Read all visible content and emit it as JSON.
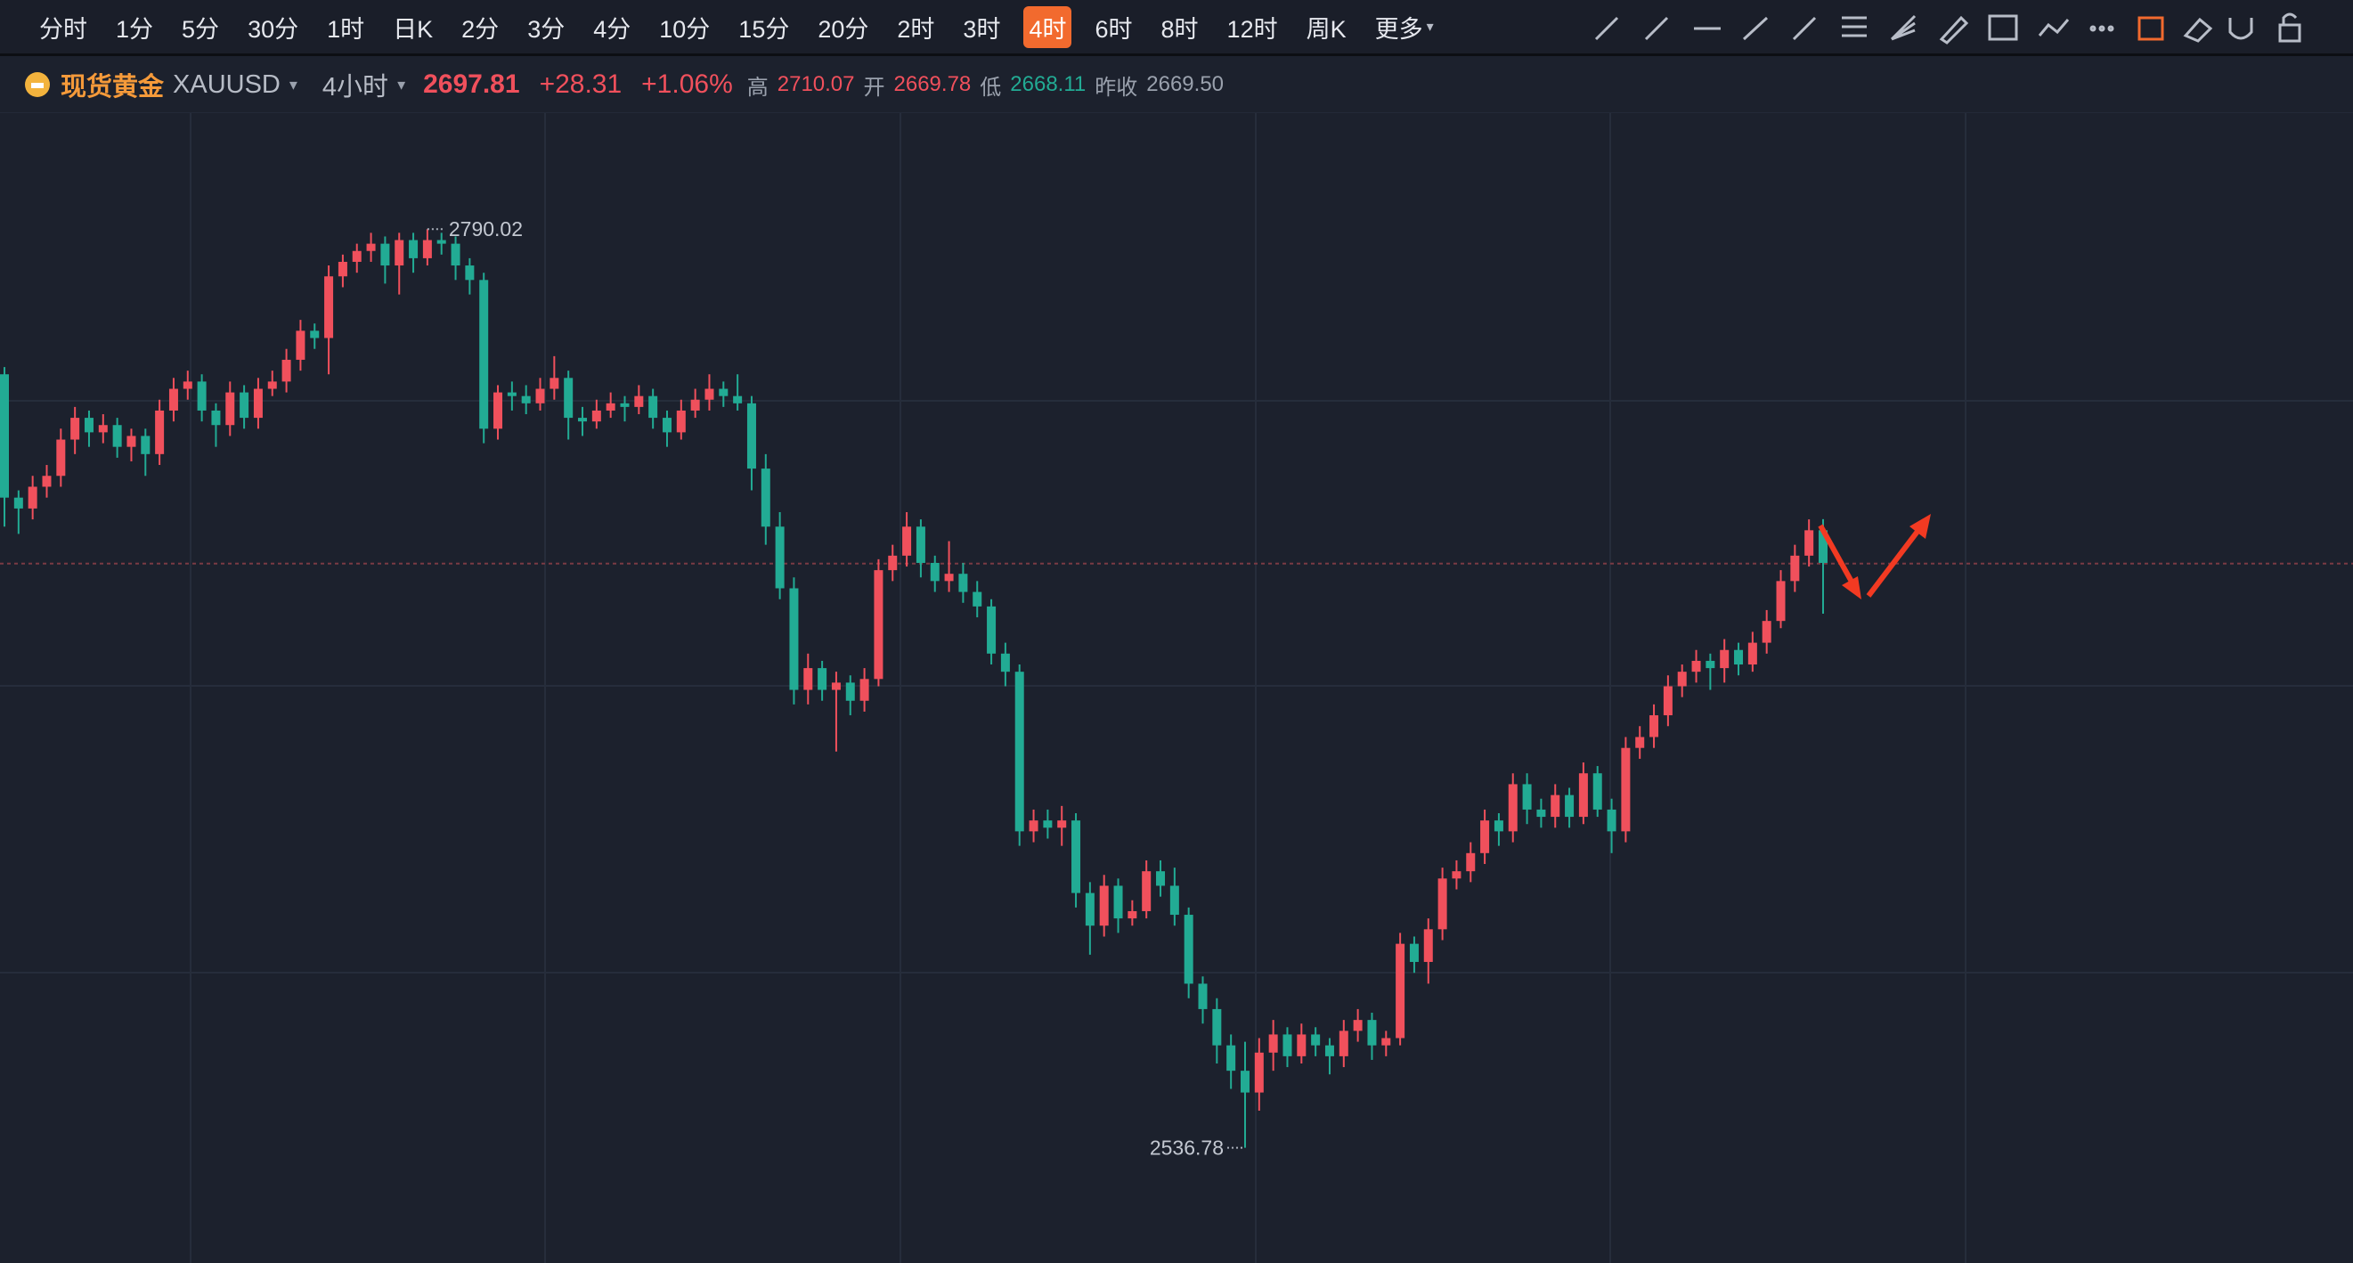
{
  "toolbar": {
    "intervals": [
      "分时",
      "1分",
      "5分",
      "30分",
      "1时",
      "日K",
      "2分",
      "3分",
      "4分",
      "10分",
      "15分",
      "20分",
      "2时",
      "3时",
      "4时",
      "6时",
      "8时",
      "12时",
      "周K",
      "更多"
    ],
    "active": "4时"
  },
  "quote": {
    "name": "现货黄金",
    "symbol": "XAUUSD",
    "period": "4小时",
    "price": 2697.81,
    "change": "+28.31",
    "change_pct": "+1.06%",
    "high_label": "高",
    "high": 2710.07,
    "open_label": "开",
    "open": 2669.78,
    "low_label": "低",
    "low": 2668.11,
    "prev_close_label": "昨收",
    "prev_close": "2669.50"
  },
  "chart_data": {
    "type": "candlestick",
    "ylim": [
      2505,
      2822
    ],
    "up_color": "#f0505c",
    "down_color": "#22ab94",
    "candles": [
      [
        2750,
        2752,
        2708,
        2716
      ],
      [
        2716,
        2718,
        2706,
        2713
      ],
      [
        2713,
        2722,
        2710,
        2719
      ],
      [
        2719,
        2725,
        2716,
        2722
      ],
      [
        2722,
        2735,
        2719,
        2732
      ],
      [
        2732,
        2741,
        2728,
        2738
      ],
      [
        2738,
        2740,
        2730,
        2734
      ],
      [
        2734,
        2739,
        2731,
        2736
      ],
      [
        2736,
        2738,
        2727,
        2730
      ],
      [
        2730,
        2735,
        2726,
        2733
      ],
      [
        2733,
        2735,
        2722,
        2728
      ],
      [
        2728,
        2743,
        2725,
        2740
      ],
      [
        2740,
        2749,
        2737,
        2746
      ],
      [
        2746,
        2751,
        2743,
        2748
      ],
      [
        2748,
        2750,
        2737,
        2740
      ],
      [
        2740,
        2742,
        2730,
        2736
      ],
      [
        2736,
        2748,
        2733,
        2745
      ],
      [
        2745,
        2747,
        2735,
        2738
      ],
      [
        2738,
        2749,
        2735,
        2746
      ],
      [
        2746,
        2751,
        2744,
        2748
      ],
      [
        2748,
        2757,
        2745,
        2754
      ],
      [
        2754,
        2765,
        2751,
        2762
      ],
      [
        2762,
        2764,
        2757,
        2760
      ],
      [
        2760,
        2780,
        2750,
        2777
      ],
      [
        2777,
        2783,
        2774,
        2781
      ],
      [
        2781,
        2786,
        2778,
        2784
      ],
      [
        2784,
        2789,
        2781,
        2786
      ],
      [
        2786,
        2788,
        2775,
        2780
      ],
      [
        2780,
        2789,
        2772,
        2787
      ],
      [
        2787,
        2789,
        2778,
        2782
      ],
      [
        2782,
        2790.02,
        2780,
        2787
      ],
      [
        2787,
        2789,
        2783,
        2786
      ],
      [
        2786,
        2788,
        2776,
        2780
      ],
      [
        2780,
        2782,
        2772,
        2776
      ],
      [
        2776,
        2778,
        2731,
        2735
      ],
      [
        2735,
        2747,
        2732,
        2745
      ],
      [
        2745,
        2748,
        2740,
        2744
      ],
      [
        2744,
        2747,
        2739,
        2742
      ],
      [
        2742,
        2749,
        2740,
        2746
      ],
      [
        2746,
        2755,
        2743,
        2749
      ],
      [
        2749,
        2751,
        2732,
        2738
      ],
      [
        2738,
        2741,
        2733,
        2737
      ],
      [
        2737,
        2743,
        2735,
        2740
      ],
      [
        2740,
        2745,
        2738,
        2742
      ],
      [
        2742,
        2744,
        2737,
        2741
      ],
      [
        2741,
        2747,
        2739,
        2744
      ],
      [
        2744,
        2746,
        2735,
        2738
      ],
      [
        2738,
        2740,
        2730,
        2734
      ],
      [
        2734,
        2743,
        2732,
        2740
      ],
      [
        2740,
        2746,
        2738,
        2743
      ],
      [
        2743,
        2750,
        2740,
        2746
      ],
      [
        2746,
        2748,
        2741,
        2744
      ],
      [
        2744,
        2750,
        2740,
        2742
      ],
      [
        2742,
        2744,
        2718,
        2724
      ],
      [
        2724,
        2728,
        2703,
        2708
      ],
      [
        2708,
        2712,
        2688,
        2691
      ],
      [
        2691,
        2694,
        2659,
        2663
      ],
      [
        2663,
        2673,
        2659,
        2669
      ],
      [
        2669,
        2671,
        2660,
        2663
      ],
      [
        2663,
        2668,
        2646,
        2665
      ],
      [
        2665,
        2667,
        2656,
        2660
      ],
      [
        2660,
        2669,
        2657,
        2666
      ],
      [
        2666,
        2699,
        2664,
        2696
      ],
      [
        2696,
        2703,
        2693,
        2700
      ],
      [
        2700,
        2712,
        2697,
        2708
      ],
      [
        2708,
        2710,
        2694,
        2698
      ],
      [
        2698,
        2700,
        2690,
        2693
      ],
      [
        2693,
        2704,
        2690,
        2695
      ],
      [
        2695,
        2698,
        2687,
        2690
      ],
      [
        2690,
        2693,
        2683,
        2686
      ],
      [
        2686,
        2688,
        2670,
        2673
      ],
      [
        2673,
        2676,
        2664,
        2668
      ],
      [
        2668,
        2670,
        2620,
        2624
      ],
      [
        2624,
        2630,
        2621,
        2627
      ],
      [
        2627,
        2630,
        2622,
        2625
      ],
      [
        2625,
        2631,
        2620,
        2627
      ],
      [
        2627,
        2629,
        2603,
        2607
      ],
      [
        2607,
        2610,
        2590,
        2598
      ],
      [
        2598,
        2612,
        2595,
        2609
      ],
      [
        2609,
        2611,
        2596,
        2600
      ],
      [
        2600,
        2605,
        2598,
        2602
      ],
      [
        2602,
        2616,
        2600,
        2613
      ],
      [
        2613,
        2616,
        2606,
        2609
      ],
      [
        2609,
        2614,
        2598,
        2601
      ],
      [
        2601,
        2603,
        2578,
        2582
      ],
      [
        2582,
        2584,
        2571,
        2575
      ],
      [
        2575,
        2578,
        2560,
        2565
      ],
      [
        2565,
        2568,
        2553,
        2558
      ],
      [
        2558,
        2566,
        2536.78,
        2552
      ],
      [
        2552,
        2567,
        2547,
        2563
      ],
      [
        2563,
        2572,
        2558,
        2568
      ],
      [
        2568,
        2570,
        2559,
        2562
      ],
      [
        2562,
        2571,
        2560,
        2568
      ],
      [
        2568,
        2570,
        2562,
        2565
      ],
      [
        2565,
        2567,
        2557,
        2562
      ],
      [
        2562,
        2572,
        2559,
        2569
      ],
      [
        2569,
        2575,
        2566,
        2572
      ],
      [
        2572,
        2574,
        2561,
        2565
      ],
      [
        2565,
        2569,
        2562,
        2567
      ],
      [
        2567,
        2596,
        2565,
        2593
      ],
      [
        2593,
        2595,
        2585,
        2588
      ],
      [
        2588,
        2600,
        2582,
        2597
      ],
      [
        2597,
        2614,
        2594,
        2611
      ],
      [
        2611,
        2616,
        2608,
        2613
      ],
      [
        2613,
        2621,
        2610,
        2618
      ],
      [
        2618,
        2630,
        2615,
        2627
      ],
      [
        2627,
        2629,
        2620,
        2624
      ],
      [
        2624,
        2640,
        2621,
        2637
      ],
      [
        2637,
        2640,
        2626,
        2630
      ],
      [
        2630,
        2633,
        2625,
        2628
      ],
      [
        2628,
        2637,
        2625,
        2634
      ],
      [
        2634,
        2636,
        2625,
        2628
      ],
      [
        2628,
        2643,
        2626,
        2640
      ],
      [
        2640,
        2642,
        2628,
        2630
      ],
      [
        2630,
        2633,
        2618,
        2624
      ],
      [
        2624,
        2650,
        2621,
        2647
      ],
      [
        2647,
        2653,
        2644,
        2650
      ],
      [
        2650,
        2659,
        2647,
        2656
      ],
      [
        2656,
        2667,
        2653,
        2664
      ],
      [
        2664,
        2670,
        2661,
        2668
      ],
      [
        2668,
        2674,
        2665,
        2671
      ],
      [
        2671,
        2673,
        2663,
        2669
      ],
      [
        2669,
        2677,
        2665,
        2674
      ],
      [
        2674,
        2676,
        2667,
        2670
      ],
      [
        2670,
        2679,
        2668,
        2676
      ],
      [
        2676,
        2685,
        2673,
        2682
      ],
      [
        2682,
        2696,
        2680,
        2693
      ],
      [
        2693,
        2703,
        2690,
        2700
      ],
      [
        2700,
        2710,
        2697,
        2707
      ],
      [
        2707,
        2710.07,
        2684,
        2698
      ]
    ]
  }
}
